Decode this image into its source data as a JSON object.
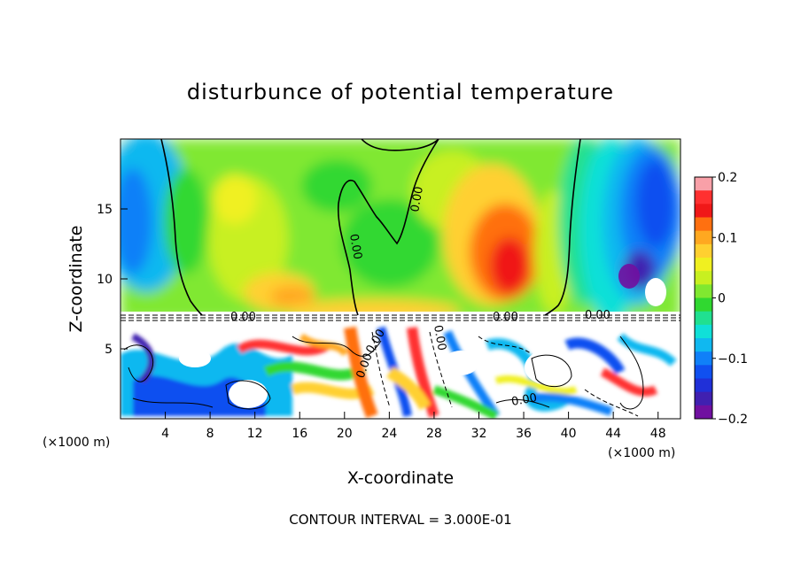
{
  "chart_data": {
    "type": "heatmap",
    "title": "disturbunce of potential temperature",
    "xlabel": "X-coordinate",
    "ylabel": "Z-coordinate",
    "x_unit_label": "(×1000 m)",
    "z_unit_label": "(×1000 m)",
    "xlim": [
      0,
      50
    ],
    "ylim": [
      0,
      20
    ],
    "x_ticks": [
      4,
      8,
      12,
      16,
      20,
      24,
      28,
      32,
      36,
      40,
      44,
      48
    ],
    "y_ticks": [
      5,
      10,
      15
    ],
    "colorbar": {
      "range": [
        -0.2,
        0.2
      ],
      "tick_labels": [
        "0.2",
        "0.1",
        "0",
        "−0.1",
        "−0.2"
      ],
      "tick_values": [
        0.2,
        0.1,
        0,
        -0.1,
        -0.2
      ],
      "colors": [
        "#f9a0a8",
        "#ff3030",
        "#f01818",
        "#ff7010",
        "#ffa820",
        "#ffd030",
        "#f0f020",
        "#c8f020",
        "#80e830",
        "#30d830",
        "#20e090",
        "#10e0d8",
        "#10b8f0",
        "#1080f8",
        "#1050f0",
        "#2030d8",
        "#4020b0",
        "#7010a0"
      ]
    },
    "contour_labels": [
      "0.00",
      "0.00",
      "0.00",
      "0.00",
      "0.00",
      "0.00",
      "0.00",
      "0.00",
      "0.00"
    ],
    "footer": "CONTOUR INTERVAL = 3.000E-01"
  }
}
